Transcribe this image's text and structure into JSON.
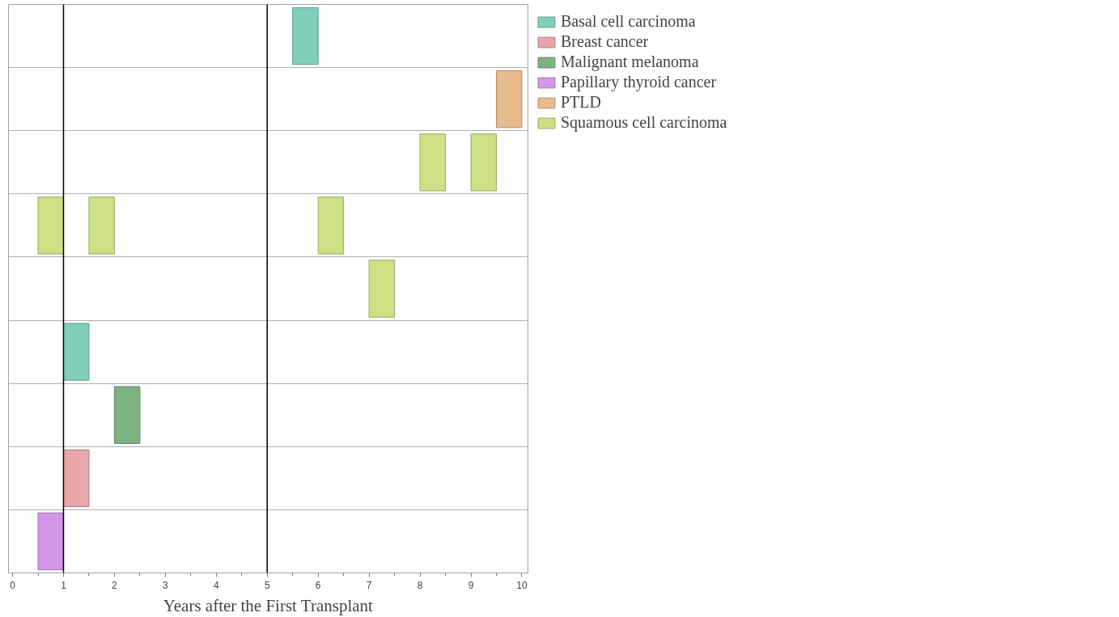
{
  "chart_data": {
    "type": "bar",
    "orientation": "horizontal",
    "xlabel": "Years after the First Transplant",
    "categories": [
      null,
      null,
      null,
      null,
      null,
      null,
      null,
      null,
      null
    ],
    "series": [
      {
        "name": "Basal cell carcinoma",
        "color": "#80cfba",
        "base": [
          5.5,
          null,
          null,
          null,
          null,
          1,
          null,
          null,
          null
        ],
        "values": [
          0.5,
          null,
          null,
          null,
          null,
          0.5,
          null,
          null,
          null
        ]
      },
      {
        "name": "Breast cancer",
        "color": "#e8a6ab",
        "base": [
          null,
          null,
          null,
          null,
          null,
          null,
          null,
          1,
          null
        ],
        "values": [
          null,
          null,
          null,
          null,
          null,
          null,
          null,
          0.5,
          null
        ]
      },
      {
        "name": "Malignant melanoma",
        "color": "#7db383",
        "base": [
          null,
          null,
          null,
          null,
          null,
          null,
          2,
          null,
          null
        ],
        "values": [
          null,
          null,
          null,
          null,
          null,
          null,
          0.5,
          null,
          null
        ]
      },
      {
        "name": "Papillary thyroid cancer",
        "color": "#d396e9",
        "base": [
          null,
          null,
          null,
          null,
          null,
          null,
          null,
          null,
          0.5
        ],
        "values": [
          null,
          null,
          null,
          null,
          null,
          null,
          null,
          null,
          0.5
        ]
      },
      {
        "name": "PTLD",
        "color": "#e8bb8e",
        "base": [
          null,
          9.5,
          null,
          null,
          null,
          null,
          null,
          null,
          null
        ],
        "values": [
          null,
          0.5,
          null,
          null,
          null,
          null,
          null,
          null,
          null
        ]
      },
      {
        "name": "Squamous cell carcinoma",
        "color": "#cbe184",
        "base": [
          null,
          null,
          8,
          0.5,
          7,
          null,
          null,
          null,
          null
        ],
        "values": [
          null,
          null,
          0.5,
          0.5,
          0.5,
          null,
          null,
          null,
          null
        ]
      },
      {
        "color": "#cbe184",
        "base": [
          null,
          null,
          9,
          1.5,
          null,
          null,
          null,
          null,
          null
        ],
        "values": [
          null,
          null,
          0.5,
          0.5,
          null,
          null,
          null,
          null,
          null
        ]
      },
      {
        "color": "#cbe184",
        "base": [
          null,
          null,
          null,
          6,
          null,
          null,
          null,
          null,
          null
        ],
        "values": [
          null,
          null,
          null,
          0.5,
          null,
          null,
          null,
          null,
          null
        ]
      }
    ],
    "xlim": [
      -0.08,
      10.12
    ],
    "xticks": [
      0,
      1,
      2,
      3,
      4,
      5,
      6,
      7,
      8,
      9,
      10
    ],
    "ref_lines": [
      {
        "axis": "x",
        "value": 1,
        "color": "#000000"
      },
      {
        "axis": "x",
        "value": 5,
        "color": "#000000"
      }
    ],
    "grid": "y",
    "legend": "top right",
    "tick_labels": "x"
  }
}
